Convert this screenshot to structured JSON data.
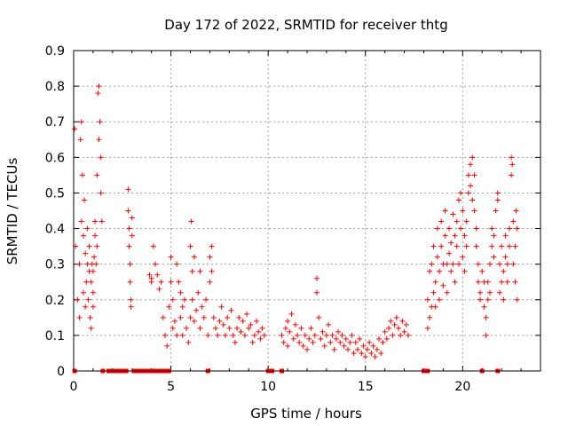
{
  "chart_data": {
    "type": "scatter",
    "title": "Day 172 of 2022, SRMTID for receiver thtg",
    "xlabel": "GPS time / hours",
    "ylabel": "SRMTID / TECUs",
    "xlim": [
      0,
      24
    ],
    "ylim": [
      0,
      0.9
    ],
    "grid": true,
    "marker": "plus",
    "color": "#ff0000",
    "x_ticks": [
      "0",
      "5",
      "10",
      "15",
      "20"
    ],
    "y_ticks": [
      "0",
      "0.1",
      "0.2",
      "0.3",
      "0.4",
      "0.5",
      "0.6",
      "0.7",
      "0.8",
      "0.9"
    ],
    "zero_markers_x": [
      0.05,
      1.5,
      1.8,
      1.9,
      2.0,
      2.1,
      2.2,
      2.3,
      2.4,
      2.5,
      2.6,
      2.7,
      3.1,
      3.3,
      3.5,
      3.7,
      3.9,
      4.1,
      4.3,
      4.5,
      4.6,
      4.8,
      4.9,
      6.9,
      10.0,
      10.2,
      10.7,
      18.0,
      18.1,
      18.2,
      21.0,
      21.8
    ],
    "series": [
      {
        "name": "SRMTID",
        "points": [
          [
            0.05,
            0.68
          ],
          [
            0.1,
            0.35
          ],
          [
            0.2,
            0.2
          ],
          [
            0.3,
            0.15
          ],
          [
            0.3,
            0.3
          ],
          [
            0.35,
            0.65
          ],
          [
            0.4,
            0.7
          ],
          [
            0.4,
            0.42
          ],
          [
            0.45,
            0.55
          ],
          [
            0.5,
            0.22
          ],
          [
            0.5,
            0.38
          ],
          [
            0.55,
            0.48
          ],
          [
            0.6,
            0.33
          ],
          [
            0.6,
            0.18
          ],
          [
            0.65,
            0.25
          ],
          [
            0.7,
            0.3
          ],
          [
            0.7,
            0.4
          ],
          [
            0.75,
            0.2
          ],
          [
            0.8,
            0.28
          ],
          [
            0.8,
            0.35
          ],
          [
            0.85,
            0.15
          ],
          [
            0.9,
            0.25
          ],
          [
            0.9,
            0.12
          ],
          [
            0.95,
            0.3
          ],
          [
            1.0,
            0.28
          ],
          [
            1.0,
            0.22
          ],
          [
            1.05,
            0.32
          ],
          [
            1.1,
            0.38
          ],
          [
            1.1,
            0.42
          ],
          [
            1.15,
            0.3
          ],
          [
            1.2,
            0.55
          ],
          [
            1.25,
            0.78
          ],
          [
            1.3,
            0.8
          ],
          [
            1.3,
            0.65
          ],
          [
            1.35,
            0.7
          ],
          [
            1.4,
            0.6
          ],
          [
            1.4,
            0.5
          ],
          [
            1.45,
            0.42
          ],
          [
            1.2,
            0.35
          ],
          [
            1.0,
            0.18
          ],
          [
            2.8,
            0.51
          ],
          [
            2.8,
            0.45
          ],
          [
            2.85,
            0.4
          ],
          [
            2.85,
            0.35
          ],
          [
            2.9,
            0.3
          ],
          [
            2.9,
            0.25
          ],
          [
            2.95,
            0.2
          ],
          [
            2.95,
            0.18
          ],
          [
            3.0,
            0.43
          ],
          [
            3.0,
            0.38
          ],
          [
            3.9,
            0.27
          ],
          [
            4.0,
            0.26
          ],
          [
            4.0,
            0.25
          ],
          [
            4.1,
            0.35
          ],
          [
            4.2,
            0.3
          ],
          [
            4.3,
            0.27
          ],
          [
            4.4,
            0.23
          ],
          [
            4.5,
            0.25
          ],
          [
            4.6,
            0.15
          ],
          [
            4.7,
            0.1
          ],
          [
            4.8,
            0.07
          ],
          [
            4.9,
            0.18
          ],
          [
            5.0,
            0.25
          ],
          [
            5.0,
            0.32
          ],
          [
            5.1,
            0.2
          ],
          [
            5.1,
            0.12
          ],
          [
            5.2,
            0.14
          ],
          [
            5.3,
            0.3
          ],
          [
            5.3,
            0.1
          ],
          [
            5.4,
            0.25
          ],
          [
            5.5,
            0.22
          ],
          [
            5.5,
            0.15
          ],
          [
            5.6,
            0.18
          ],
          [
            5.6,
            0.1
          ],
          [
            5.7,
            0.2
          ],
          [
            5.8,
            0.12
          ],
          [
            5.9,
            0.08
          ],
          [
            6.0,
            0.15
          ],
          [
            6.0,
            0.35
          ],
          [
            6.05,
            0.42
          ],
          [
            6.1,
            0.28
          ],
          [
            6.1,
            0.2
          ],
          [
            6.2,
            0.32
          ],
          [
            6.2,
            0.14
          ],
          [
            6.3,
            0.17
          ],
          [
            6.4,
            0.22
          ],
          [
            6.5,
            0.12
          ],
          [
            6.5,
            0.28
          ],
          [
            6.6,
            0.18
          ],
          [
            6.7,
            0.15
          ],
          [
            6.8,
            0.2
          ],
          [
            6.9,
            0.1
          ],
          [
            7.0,
            0.25
          ],
          [
            7.0,
            0.32
          ],
          [
            7.1,
            0.35
          ],
          [
            7.1,
            0.28
          ],
          [
            7.2,
            0.15
          ],
          [
            7.3,
            0.12
          ],
          [
            7.4,
            0.1
          ],
          [
            7.5,
            0.14
          ],
          [
            7.6,
            0.18
          ],
          [
            7.7,
            0.13
          ],
          [
            7.8,
            0.1
          ],
          [
            7.9,
            0.15
          ],
          [
            8.0,
            0.12
          ],
          [
            8.1,
            0.17
          ],
          [
            8.2,
            0.1
          ],
          [
            8.3,
            0.08
          ],
          [
            8.4,
            0.12
          ],
          [
            8.5,
            0.15
          ],
          [
            8.6,
            0.11
          ],
          [
            8.7,
            0.14
          ],
          [
            8.8,
            0.1
          ],
          [
            8.9,
            0.16
          ],
          [
            9.0,
            0.12
          ],
          [
            9.1,
            0.13
          ],
          [
            9.2,
            0.08
          ],
          [
            9.3,
            0.1
          ],
          [
            9.4,
            0.14
          ],
          [
            9.5,
            0.11
          ],
          [
            9.6,
            0.09
          ],
          [
            9.7,
            0.12
          ],
          [
            9.8,
            0.1
          ],
          [
            10.7,
            0.1
          ],
          [
            10.8,
            0.08
          ],
          [
            10.9,
            0.12
          ],
          [
            11.0,
            0.07
          ],
          [
            11.0,
            0.14
          ],
          [
            11.1,
            0.11
          ],
          [
            11.2,
            0.16
          ],
          [
            11.3,
            0.09
          ],
          [
            11.4,
            0.13
          ],
          [
            11.5,
            0.1
          ],
          [
            11.6,
            0.08
          ],
          [
            11.7,
            0.12
          ],
          [
            11.8,
            0.07
          ],
          [
            11.9,
            0.1
          ],
          [
            12.0,
            0.06
          ],
          [
            12.1,
            0.09
          ],
          [
            12.2,
            0.12
          ],
          [
            12.3,
            0.08
          ],
          [
            12.4,
            0.1
          ],
          [
            12.5,
            0.26
          ],
          [
            12.5,
            0.22
          ],
          [
            12.6,
            0.15
          ],
          [
            12.7,
            0.09
          ],
          [
            12.8,
            0.11
          ],
          [
            12.9,
            0.07
          ],
          [
            13.0,
            0.1
          ],
          [
            13.1,
            0.13
          ],
          [
            13.2,
            0.08
          ],
          [
            13.3,
            0.1
          ],
          [
            13.4,
            0.06
          ],
          [
            13.5,
            0.09
          ],
          [
            13.6,
            0.11
          ],
          [
            13.7,
            0.08
          ],
          [
            13.8,
            0.1
          ],
          [
            13.9,
            0.07
          ],
          [
            14.0,
            0.09
          ],
          [
            14.1,
            0.06
          ],
          [
            14.2,
            0.08
          ],
          [
            14.3,
            0.1
          ],
          [
            14.4,
            0.05
          ],
          [
            14.5,
            0.08
          ],
          [
            14.6,
            0.06
          ],
          [
            14.7,
            0.09
          ],
          [
            14.8,
            0.05
          ],
          [
            14.9,
            0.07
          ],
          [
            15.0,
            0.04
          ],
          [
            15.1,
            0.06
          ],
          [
            15.2,
            0.08
          ],
          [
            15.3,
            0.05
          ],
          [
            15.4,
            0.07
          ],
          [
            15.5,
            0.04
          ],
          [
            15.6,
            0.06
          ],
          [
            15.7,
            0.09
          ],
          [
            15.8,
            0.05
          ],
          [
            15.9,
            0.08
          ],
          [
            16.0,
            0.11
          ],
          [
            16.1,
            0.09
          ],
          [
            16.2,
            0.12
          ],
          [
            16.3,
            0.14
          ],
          [
            16.4,
            0.1
          ],
          [
            16.5,
            0.13
          ],
          [
            16.6,
            0.15
          ],
          [
            16.7,
            0.12
          ],
          [
            16.8,
            0.1
          ],
          [
            16.9,
            0.14
          ],
          [
            17.0,
            0.11
          ],
          [
            17.1,
            0.13
          ],
          [
            17.2,
            0.1
          ],
          [
            18.2,
            0.12
          ],
          [
            18.2,
            0.2
          ],
          [
            18.3,
            0.15
          ],
          [
            18.3,
            0.28
          ],
          [
            18.4,
            0.18
          ],
          [
            18.4,
            0.3
          ],
          [
            18.5,
            0.22
          ],
          [
            18.5,
            0.35
          ],
          [
            18.6,
            0.25
          ],
          [
            18.6,
            0.18
          ],
          [
            18.7,
            0.32
          ],
          [
            18.7,
            0.4
          ],
          [
            18.8,
            0.28
          ],
          [
            18.8,
            0.2
          ],
          [
            18.9,
            0.35
          ],
          [
            18.9,
            0.42
          ],
          [
            19.0,
            0.3
          ],
          [
            19.0,
            0.24
          ],
          [
            19.1,
            0.38
          ],
          [
            19.1,
            0.45
          ],
          [
            19.2,
            0.3
          ],
          [
            19.2,
            0.22
          ],
          [
            19.3,
            0.4
          ],
          [
            19.3,
            0.33
          ],
          [
            19.4,
            0.36
          ],
          [
            19.4,
            0.28
          ],
          [
            19.5,
            0.44
          ],
          [
            19.5,
            0.3
          ],
          [
            19.6,
            0.38
          ],
          [
            19.6,
            0.25
          ],
          [
            19.7,
            0.42
          ],
          [
            19.7,
            0.35
          ],
          [
            19.8,
            0.48
          ],
          [
            19.8,
            0.3
          ],
          [
            19.9,
            0.5
          ],
          [
            19.9,
            0.4
          ],
          [
            20.0,
            0.45
          ],
          [
            20.0,
            0.32
          ],
          [
            20.1,
            0.38
          ],
          [
            20.1,
            0.28
          ],
          [
            20.2,
            0.35
          ],
          [
            20.2,
            0.42
          ],
          [
            20.3,
            0.5
          ],
          [
            20.3,
            0.55
          ],
          [
            20.4,
            0.58
          ],
          [
            20.4,
            0.52
          ],
          [
            20.5,
            0.6
          ],
          [
            20.5,
            0.48
          ],
          [
            20.6,
            0.55
          ],
          [
            20.6,
            0.45
          ],
          [
            20.7,
            0.4
          ],
          [
            20.7,
            0.35
          ],
          [
            20.8,
            0.3
          ],
          [
            20.8,
            0.25
          ],
          [
            20.9,
            0.2
          ],
          [
            20.9,
            0.22
          ],
          [
            21.0,
            0.28
          ],
          [
            21.1,
            0.25
          ],
          [
            21.1,
            0.18
          ],
          [
            21.2,
            0.15
          ],
          [
            21.2,
            0.1
          ],
          [
            21.3,
            0.2
          ],
          [
            21.3,
            0.25
          ],
          [
            21.4,
            0.3
          ],
          [
            21.4,
            0.22
          ],
          [
            21.5,
            0.35
          ],
          [
            21.5,
            0.4
          ],
          [
            21.6,
            0.38
          ],
          [
            21.6,
            0.32
          ],
          [
            21.7,
            0.45
          ],
          [
            21.8,
            0.48
          ],
          [
            21.8,
            0.5
          ],
          [
            21.9,
            0.3
          ],
          [
            21.9,
            0.22
          ],
          [
            22.0,
            0.25
          ],
          [
            22.0,
            0.35
          ],
          [
            22.1,
            0.28
          ],
          [
            22.1,
            0.2
          ],
          [
            22.2,
            0.32
          ],
          [
            22.2,
            0.38
          ],
          [
            22.3,
            0.25
          ],
          [
            22.3,
            0.3
          ],
          [
            22.4,
            0.35
          ],
          [
            22.4,
            0.4
          ],
          [
            22.5,
            0.55
          ],
          [
            22.5,
            0.6
          ],
          [
            22.55,
            0.58
          ],
          [
            22.6,
            0.42
          ],
          [
            22.6,
            0.3
          ],
          [
            22.7,
            0.25
          ],
          [
            22.7,
            0.35
          ],
          [
            22.75,
            0.45
          ],
          [
            22.8,
            0.4
          ],
          [
            22.8,
            0.2
          ]
        ]
      }
    ]
  }
}
